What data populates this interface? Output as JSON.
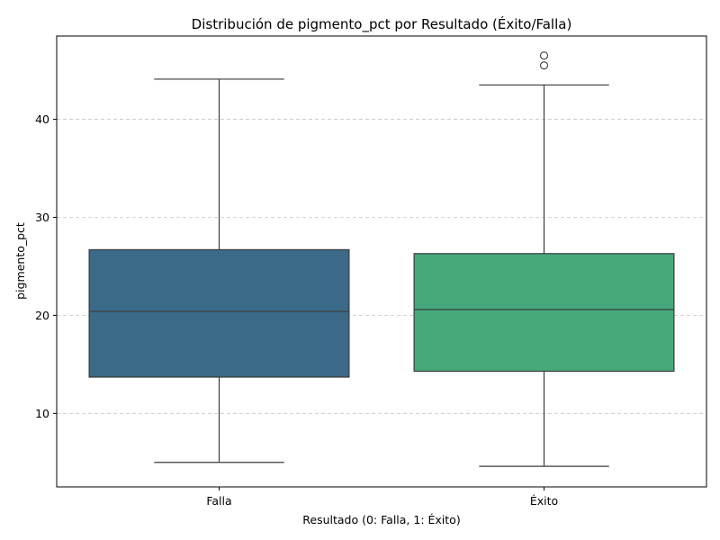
{
  "chart_data": {
    "type": "box",
    "title": "Distribución de pigmento_pct por Resultado (Éxito/Falla)",
    "xlabel": "Resultado (0: Falla, 1: Éxito)",
    "ylabel": "pigmento_pct",
    "ylim": [
      2.5,
      48.5
    ],
    "yticks": [
      10,
      20,
      30,
      40
    ],
    "grid": true,
    "categories": [
      "Falla",
      "Éxito"
    ],
    "boxes": [
      {
        "name": "Falla",
        "color": "#3b6a89",
        "whisker_low": 5.0,
        "q1": 13.7,
        "median": 20.4,
        "q3": 26.7,
        "whisker_high": 44.1,
        "outliers": []
      },
      {
        "name": "Éxito",
        "color": "#46a979",
        "whisker_low": 4.6,
        "q1": 14.3,
        "median": 20.6,
        "q3": 26.3,
        "whisker_high": 43.5,
        "outliers": [
          45.5,
          46.5
        ]
      }
    ]
  }
}
